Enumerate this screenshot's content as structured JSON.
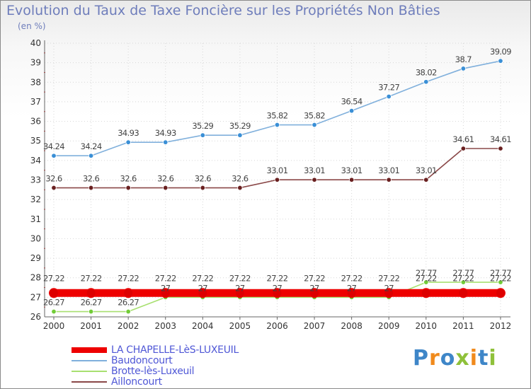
{
  "title": "Evolution du Taux de Taxe Foncière sur les Propriétés Non Bâties",
  "unit": "(en %)",
  "logo": {
    "text": "Proxiti"
  },
  "chart_data": {
    "type": "line",
    "title": "Evolution du Taux de Taxe Foncière sur les Propriétés Non Bâties",
    "ylabel": "(en %)",
    "xlabel": "",
    "ylim": [
      26,
      40
    ],
    "yticks": [
      26,
      27,
      28,
      29,
      30,
      31,
      32,
      33,
      34,
      35,
      36,
      37,
      38,
      39,
      40
    ],
    "grid": true,
    "legend_position": "bottom-left",
    "categories": [
      "2000",
      "2001",
      "2002",
      "2003",
      "2004",
      "2005",
      "2006",
      "2007",
      "2008",
      "2009",
      "2010",
      "2011",
      "2012"
    ],
    "series": [
      {
        "name": "LA CHAPELLE-LèS-LUXEUIL",
        "color": "#ee0000",
        "marker_color": "#dd0000",
        "style": "thick",
        "values": [
          27.22,
          27.22,
          27.22,
          27.22,
          27.22,
          27.22,
          27.22,
          27.22,
          27.22,
          27.22,
          27.22,
          27.22,
          27.22
        ],
        "labels": [
          "27.22",
          "27.22",
          "27.22",
          "27.22",
          "27.22",
          "27.22",
          "27.22",
          "27.22",
          "27.22",
          "27.22",
          "27.22",
          "27.22",
          "27.22"
        ]
      },
      {
        "name": "Baudoncourt",
        "color": "#80b0dc",
        "marker_color": "#3a8fd6",
        "style": "thin",
        "values": [
          34.24,
          34.24,
          34.93,
          34.93,
          35.29,
          35.29,
          35.82,
          35.82,
          36.54,
          37.27,
          38.02,
          38.7,
          39.09
        ],
        "labels": [
          "34.24",
          "34.24",
          "34.93",
          "34.93",
          "35.29",
          "35.29",
          "35.82",
          "35.82",
          "36.54",
          "37.27",
          "38.02",
          "38.7",
          "39.09"
        ]
      },
      {
        "name": "Brotte-lès-Luxeuil",
        "color": "#a8e070",
        "marker_color": "#72cc38",
        "style": "thin",
        "values": [
          26.27,
          26.27,
          26.27,
          27,
          27,
          27,
          27,
          27,
          27,
          27,
          27.77,
          27.77,
          27.77
        ],
        "labels": [
          "26.27",
          "26.27",
          "26.27",
          "27",
          "27",
          "27",
          "27",
          "27",
          "27",
          "27",
          "27.77",
          "27.77",
          "27.77"
        ]
      },
      {
        "name": "Ailloncourt",
        "color": "#8a4848",
        "marker_color": "#6a2020",
        "style": "thin",
        "values": [
          32.6,
          32.6,
          32.6,
          32.6,
          32.6,
          32.6,
          33.01,
          33.01,
          33.01,
          33.01,
          33.01,
          34.61,
          34.61
        ],
        "labels": [
          "32.6",
          "32.6",
          "32.6",
          "32.6",
          "32.6",
          "32.6",
          "33.01",
          "33.01",
          "33.01",
          "33.01",
          "33.01",
          "34.61",
          "34.61"
        ]
      }
    ]
  }
}
